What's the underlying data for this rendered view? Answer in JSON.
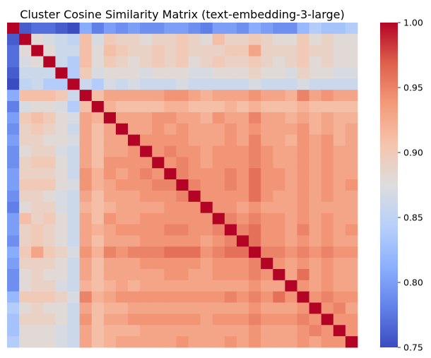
{
  "chart_data": {
    "type": "heatmap",
    "title": "Cluster Cosine Similarity Matrix (text-embedding-3-large)",
    "n": 29,
    "xlabel": "",
    "ylabel": "",
    "x_tick_labels": [],
    "y_tick_labels": [],
    "colormap": "coolwarm",
    "vmin": 0.75,
    "vmax": 1.0,
    "colorbar_ticks": [
      "0.75",
      "0.80",
      "0.85",
      "0.90",
      "0.95",
      "1.00"
    ],
    "colorbar_tick_values": [
      0.75,
      0.8,
      0.85,
      0.9,
      0.95,
      1.0
    ],
    "diagonal_value": 1.0,
    "matrix": [
      [
        1.0,
        0.76,
        0.77,
        0.77,
        0.76,
        0.75,
        0.81,
        0.78,
        0.8,
        0.79,
        0.8,
        0.79,
        0.79,
        0.8,
        0.8,
        0.79,
        0.78,
        0.8,
        0.8,
        0.79,
        0.81,
        0.8,
        0.79,
        0.79,
        0.82,
        0.84,
        0.83,
        0.83,
        0.84
      ],
      [
        0.76,
        1.0,
        0.88,
        0.87,
        0.86,
        0.85,
        0.91,
        0.87,
        0.9,
        0.89,
        0.89,
        0.88,
        0.89,
        0.89,
        0.9,
        0.89,
        0.88,
        0.91,
        0.89,
        0.89,
        0.9,
        0.89,
        0.88,
        0.88,
        0.9,
        0.88,
        0.89,
        0.88,
        0.88
      ],
      [
        0.77,
        0.88,
        1.0,
        0.88,
        0.86,
        0.86,
        0.91,
        0.88,
        0.91,
        0.9,
        0.89,
        0.89,
        0.9,
        0.89,
        0.9,
        0.89,
        0.89,
        0.89,
        0.9,
        0.9,
        0.93,
        0.89,
        0.89,
        0.89,
        0.9,
        0.89,
        0.89,
        0.88,
        0.88
      ],
      [
        0.77,
        0.87,
        0.88,
        1.0,
        0.86,
        0.84,
        0.91,
        0.88,
        0.9,
        0.89,
        0.88,
        0.89,
        0.9,
        0.89,
        0.9,
        0.88,
        0.89,
        0.9,
        0.89,
        0.89,
        0.9,
        0.89,
        0.88,
        0.89,
        0.9,
        0.88,
        0.89,
        0.88,
        0.88
      ],
      [
        0.76,
        0.86,
        0.86,
        0.86,
        1.0,
        0.84,
        0.9,
        0.87,
        0.88,
        0.88,
        0.88,
        0.87,
        0.88,
        0.88,
        0.88,
        0.87,
        0.87,
        0.88,
        0.88,
        0.88,
        0.89,
        0.88,
        0.88,
        0.87,
        0.89,
        0.88,
        0.88,
        0.87,
        0.87
      ],
      [
        0.75,
        0.85,
        0.86,
        0.84,
        0.84,
        1.0,
        0.86,
        0.84,
        0.87,
        0.86,
        0.87,
        0.86,
        0.86,
        0.86,
        0.87,
        0.86,
        0.86,
        0.86,
        0.86,
        0.86,
        0.87,
        0.86,
        0.86,
        0.86,
        0.87,
        0.86,
        0.86,
        0.86,
        0.86
      ],
      [
        0.81,
        0.91,
        0.91,
        0.91,
        0.9,
        0.86,
        1.0,
        0.91,
        0.93,
        0.93,
        0.93,
        0.93,
        0.93,
        0.94,
        0.94,
        0.93,
        0.92,
        0.93,
        0.93,
        0.93,
        0.94,
        0.93,
        0.93,
        0.92,
        0.95,
        0.93,
        0.94,
        0.93,
        0.93
      ],
      [
        0.78,
        0.87,
        0.88,
        0.88,
        0.87,
        0.84,
        0.91,
        1.0,
        0.92,
        0.91,
        0.91,
        0.91,
        0.91,
        0.92,
        0.92,
        0.91,
        0.91,
        0.91,
        0.92,
        0.91,
        0.92,
        0.91,
        0.91,
        0.91,
        0.92,
        0.91,
        0.91,
        0.91,
        0.91
      ],
      [
        0.8,
        0.9,
        0.91,
        0.9,
        0.88,
        0.87,
        0.93,
        0.92,
        1.0,
        0.93,
        0.93,
        0.93,
        0.94,
        0.94,
        0.93,
        0.93,
        0.92,
        0.94,
        0.93,
        0.93,
        0.95,
        0.93,
        0.93,
        0.92,
        0.93,
        0.92,
        0.93,
        0.92,
        0.92
      ],
      [
        0.79,
        0.89,
        0.9,
        0.89,
        0.88,
        0.86,
        0.93,
        0.91,
        0.93,
        1.0,
        0.93,
        0.93,
        0.94,
        0.93,
        0.94,
        0.93,
        0.93,
        0.93,
        0.94,
        0.93,
        0.94,
        0.93,
        0.93,
        0.93,
        0.94,
        0.92,
        0.93,
        0.92,
        0.93
      ],
      [
        0.8,
        0.89,
        0.89,
        0.88,
        0.88,
        0.87,
        0.93,
        0.91,
        0.93,
        0.93,
        1.0,
        0.94,
        0.94,
        0.94,
        0.94,
        0.93,
        0.93,
        0.93,
        0.94,
        0.93,
        0.95,
        0.93,
        0.93,
        0.92,
        0.94,
        0.93,
        0.94,
        0.92,
        0.93
      ],
      [
        0.79,
        0.88,
        0.89,
        0.89,
        0.87,
        0.86,
        0.93,
        0.91,
        0.93,
        0.93,
        0.94,
        1.0,
        0.94,
        0.95,
        0.94,
        0.94,
        0.93,
        0.94,
        0.94,
        0.94,
        0.95,
        0.94,
        0.93,
        0.93,
        0.94,
        0.93,
        0.94,
        0.93,
        0.93
      ],
      [
        0.79,
        0.89,
        0.9,
        0.9,
        0.88,
        0.86,
        0.93,
        0.91,
        0.94,
        0.94,
        0.94,
        0.94,
        1.0,
        0.94,
        0.95,
        0.94,
        0.93,
        0.94,
        0.94,
        0.94,
        0.95,
        0.94,
        0.93,
        0.93,
        0.94,
        0.93,
        0.94,
        0.93,
        0.93
      ],
      [
        0.8,
        0.89,
        0.89,
        0.89,
        0.88,
        0.86,
        0.94,
        0.92,
        0.94,
        0.93,
        0.94,
        0.95,
        0.94,
        1.0,
        0.95,
        0.94,
        0.94,
        0.94,
        0.95,
        0.94,
        0.96,
        0.94,
        0.94,
        0.93,
        0.94,
        0.93,
        0.94,
        0.93,
        0.93
      ],
      [
        0.8,
        0.9,
        0.9,
        0.9,
        0.88,
        0.87,
        0.94,
        0.92,
        0.93,
        0.94,
        0.94,
        0.94,
        0.95,
        0.95,
        1.0,
        0.95,
        0.94,
        0.94,
        0.95,
        0.94,
        0.96,
        0.94,
        0.94,
        0.93,
        0.94,
        0.93,
        0.94,
        0.93,
        0.94
      ],
      [
        0.79,
        0.89,
        0.89,
        0.88,
        0.87,
        0.86,
        0.93,
        0.91,
        0.93,
        0.93,
        0.93,
        0.94,
        0.94,
        0.94,
        0.95,
        1.0,
        0.94,
        0.94,
        0.94,
        0.94,
        0.96,
        0.94,
        0.93,
        0.93,
        0.94,
        0.93,
        0.94,
        0.93,
        0.93
      ],
      [
        0.78,
        0.88,
        0.89,
        0.89,
        0.87,
        0.86,
        0.92,
        0.91,
        0.92,
        0.93,
        0.93,
        0.93,
        0.93,
        0.94,
        0.94,
        0.94,
        1.0,
        0.94,
        0.94,
        0.93,
        0.94,
        0.93,
        0.93,
        0.93,
        0.94,
        0.93,
        0.93,
        0.93,
        0.93
      ],
      [
        0.8,
        0.91,
        0.89,
        0.9,
        0.88,
        0.86,
        0.93,
        0.91,
        0.94,
        0.93,
        0.93,
        0.94,
        0.94,
        0.94,
        0.94,
        0.94,
        0.94,
        1.0,
        0.95,
        0.94,
        0.95,
        0.94,
        0.94,
        0.93,
        0.94,
        0.93,
        0.94,
        0.93,
        0.93
      ],
      [
        0.8,
        0.89,
        0.9,
        0.89,
        0.88,
        0.86,
        0.93,
        0.92,
        0.93,
        0.94,
        0.94,
        0.94,
        0.94,
        0.95,
        0.95,
        0.94,
        0.94,
        0.95,
        1.0,
        0.95,
        0.96,
        0.94,
        0.94,
        0.93,
        0.95,
        0.93,
        0.94,
        0.93,
        0.94
      ],
      [
        0.79,
        0.89,
        0.9,
        0.89,
        0.88,
        0.86,
        0.93,
        0.91,
        0.93,
        0.93,
        0.93,
        0.94,
        0.94,
        0.94,
        0.94,
        0.94,
        0.93,
        0.94,
        0.95,
        1.0,
        0.96,
        0.94,
        0.94,
        0.93,
        0.94,
        0.93,
        0.94,
        0.93,
        0.93
      ],
      [
        0.81,
        0.9,
        0.93,
        0.9,
        0.89,
        0.87,
        0.94,
        0.92,
        0.95,
        0.94,
        0.95,
        0.95,
        0.95,
        0.96,
        0.96,
        0.96,
        0.94,
        0.95,
        0.96,
        0.96,
        1.0,
        0.95,
        0.95,
        0.94,
        0.95,
        0.94,
        0.95,
        0.94,
        0.94
      ],
      [
        0.8,
        0.89,
        0.89,
        0.89,
        0.88,
        0.86,
        0.93,
        0.91,
        0.93,
        0.93,
        0.93,
        0.94,
        0.94,
        0.94,
        0.94,
        0.94,
        0.93,
        0.94,
        0.94,
        0.94,
        0.95,
        1.0,
        0.94,
        0.93,
        0.94,
        0.93,
        0.94,
        0.93,
        0.93
      ],
      [
        0.79,
        0.88,
        0.89,
        0.88,
        0.88,
        0.86,
        0.93,
        0.91,
        0.93,
        0.93,
        0.93,
        0.93,
        0.93,
        0.94,
        0.94,
        0.93,
        0.93,
        0.94,
        0.94,
        0.94,
        0.95,
        0.94,
        1.0,
        0.93,
        0.96,
        0.93,
        0.94,
        0.93,
        0.93
      ],
      [
        0.79,
        0.88,
        0.89,
        0.89,
        0.87,
        0.86,
        0.92,
        0.91,
        0.92,
        0.93,
        0.92,
        0.93,
        0.93,
        0.93,
        0.93,
        0.93,
        0.93,
        0.93,
        0.93,
        0.93,
        0.94,
        0.93,
        0.93,
        1.0,
        0.94,
        0.93,
        0.94,
        0.93,
        0.93
      ],
      [
        0.82,
        0.9,
        0.9,
        0.9,
        0.89,
        0.87,
        0.95,
        0.92,
        0.93,
        0.94,
        0.94,
        0.94,
        0.94,
        0.94,
        0.94,
        0.94,
        0.94,
        0.94,
        0.95,
        0.94,
        0.95,
        0.94,
        0.96,
        0.94,
        1.0,
        0.94,
        0.95,
        0.94,
        0.94
      ],
      [
        0.84,
        0.88,
        0.89,
        0.88,
        0.88,
        0.86,
        0.93,
        0.91,
        0.92,
        0.92,
        0.93,
        0.93,
        0.93,
        0.93,
        0.93,
        0.93,
        0.93,
        0.93,
        0.93,
        0.93,
        0.94,
        0.93,
        0.93,
        0.93,
        0.94,
        1.0,
        0.94,
        0.95,
        0.93
      ],
      [
        0.83,
        0.89,
        0.89,
        0.89,
        0.88,
        0.86,
        0.94,
        0.91,
        0.93,
        0.93,
        0.94,
        0.94,
        0.94,
        0.94,
        0.94,
        0.94,
        0.93,
        0.94,
        0.94,
        0.94,
        0.95,
        0.94,
        0.94,
        0.94,
        0.95,
        0.94,
        1.0,
        0.94,
        0.94
      ],
      [
        0.83,
        0.88,
        0.88,
        0.88,
        0.87,
        0.86,
        0.93,
        0.91,
        0.92,
        0.92,
        0.92,
        0.93,
        0.93,
        0.93,
        0.93,
        0.93,
        0.93,
        0.93,
        0.93,
        0.93,
        0.94,
        0.93,
        0.93,
        0.93,
        0.94,
        0.95,
        0.94,
        1.0,
        0.94
      ],
      [
        0.84,
        0.88,
        0.88,
        0.88,
        0.87,
        0.86,
        0.93,
        0.91,
        0.92,
        0.93,
        0.93,
        0.93,
        0.93,
        0.93,
        0.94,
        0.93,
        0.93,
        0.93,
        0.94,
        0.93,
        0.94,
        0.93,
        0.93,
        0.93,
        0.94,
        0.93,
        0.94,
        0.94,
        1.0
      ]
    ]
  }
}
